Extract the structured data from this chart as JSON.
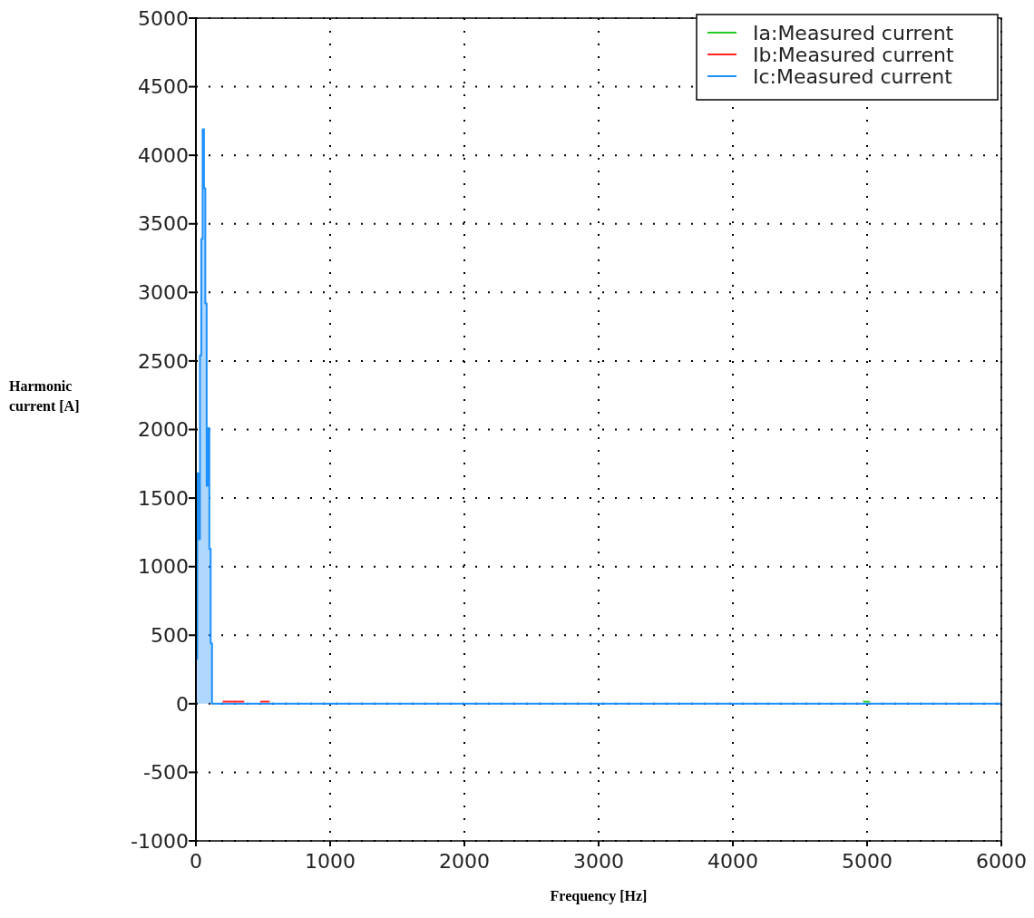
{
  "chart_data": {
    "type": "area",
    "xlabel": "Frequency [Hz]",
    "ylabel": "Harmonic current [A]",
    "xlim": [
      0,
      6000
    ],
    "xticks": [
      0,
      1000,
      2000,
      3000,
      4000,
      5000,
      6000
    ],
    "ylim": [
      -1000,
      5000
    ],
    "yticks": [
      -1000,
      -500,
      0,
      500,
      1000,
      1500,
      2000,
      2500,
      3000,
      3500,
      4000,
      4500,
      5000
    ],
    "grid": true,
    "legend": "top right",
    "series": [
      {
        "name": "Ia:Measured current",
        "type": "step",
        "color": "#22cc22",
        "x": [
          4970,
          5020
        ],
        "values": [
          15,
          15
        ]
      },
      {
        "name": "Ib:Measured current",
        "type": "step",
        "color": "#ff2020",
        "x": [
          200,
          360,
          420,
          480,
          550
        ],
        "values": [
          15,
          15,
          null,
          15,
          15
        ]
      },
      {
        "name": "Ic:Measured current",
        "color": "#1e90ff",
        "x": [
          0,
          10,
          20,
          30,
          40,
          50,
          60,
          70,
          80,
          90,
          100,
          110,
          120,
          130,
          6000
        ],
        "values": [
          330,
          1680,
          1200,
          2540,
          3390,
          4190,
          3760,
          2920,
          1590,
          2010,
          1130,
          440,
          0,
          0,
          0
        ]
      }
    ]
  }
}
